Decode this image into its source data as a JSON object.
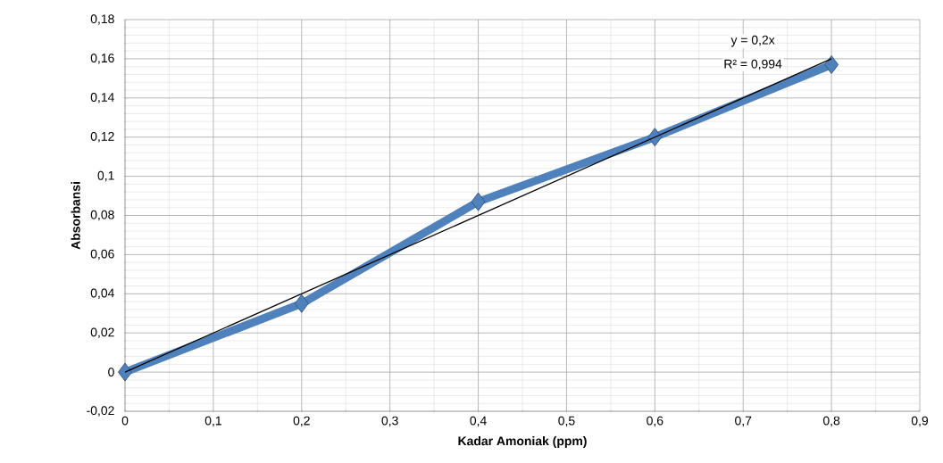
{
  "chart_data": {
    "type": "line",
    "xlabel": "Kadar Amoniak (ppm)",
    "ylabel": "Absorbansi",
    "x": [
      0,
      0.2,
      0.4,
      0.6,
      0.8
    ],
    "series": [
      {
        "color": "#4f81bd",
        "values": [
          0,
          0.035,
          0.087,
          0.12,
          0.157
        ],
        "marker": "diamond"
      },
      {
        "type": "line",
        "color": "#000000",
        "x": [
          0,
          0.8
        ],
        "values": [
          0,
          0.16
        ],
        "marker": "none"
      }
    ],
    "annotations": [
      "y = 0,2x",
      "R² = 0,994"
    ],
    "xlim": [
      0,
      0.9
    ],
    "ylim": [
      -0.02,
      0.18
    ],
    "xticks": [
      {
        "value": 0,
        "label": "0"
      },
      {
        "value": 0.1,
        "label": "0,1"
      },
      {
        "value": 0.2,
        "label": "0,2"
      },
      {
        "value": 0.3,
        "label": "0,3"
      },
      {
        "value": 0.4,
        "label": "0,4"
      },
      {
        "value": 0.5,
        "label": "0,5"
      },
      {
        "value": 0.6,
        "label": "0,6"
      },
      {
        "value": 0.7,
        "label": "0,7"
      },
      {
        "value": 0.8,
        "label": "0,8"
      },
      {
        "value": 0.9,
        "label": "0,9"
      }
    ],
    "yticks": [
      {
        "value": -0.02,
        "label": "-0,02"
      },
      {
        "value": 0,
        "label": "0"
      },
      {
        "value": 0.02,
        "label": "0,02"
      },
      {
        "value": 0.04,
        "label": "0,04"
      },
      {
        "value": 0.06,
        "label": "0,06"
      },
      {
        "value": 0.08,
        "label": "0,08"
      },
      {
        "value": 0.1,
        "label": "0,1"
      },
      {
        "value": 0.12,
        "label": "0,12"
      },
      {
        "value": 0.14,
        "label": "0,14"
      },
      {
        "value": 0.16,
        "label": "0,16"
      },
      {
        "value": 0.18,
        "label": "0,18"
      }
    ],
    "grid": true
  }
}
